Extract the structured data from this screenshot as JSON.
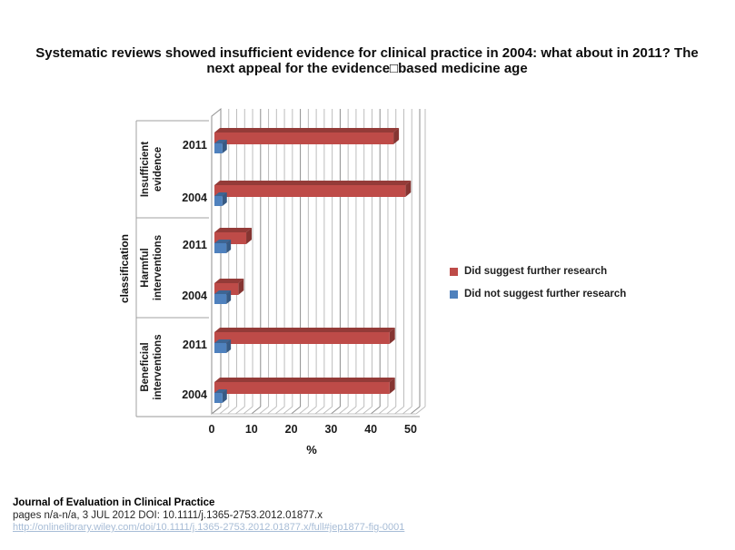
{
  "title": "Systematic reviews showed insufficient evidence for clinical practice in 2004: what about in 2011? The next appeal for the evidence□based medicine age",
  "chart_data": {
    "type": "bar",
    "orientation": "horizontal",
    "style": "3d",
    "xlabel": "%",
    "ylabel": "classification",
    "xlim": [
      0,
      52
    ],
    "xticks": [
      0,
      10,
      20,
      30,
      40,
      50
    ],
    "minor_grid_step": 2,
    "grid": true,
    "legend_position": "right-middle",
    "groups": [
      "Insufficient evidence",
      "Harmful interventions",
      "Beneficial interventions"
    ],
    "categories": [
      {
        "group": "Insufficient evidence",
        "year": "2011"
      },
      {
        "group": "Insufficient evidence",
        "year": "2004"
      },
      {
        "group": "Harmful interventions",
        "year": "2011"
      },
      {
        "group": "Harmful interventions",
        "year": "2004"
      },
      {
        "group": "Beneficial interventions",
        "year": "2011"
      },
      {
        "group": "Beneficial interventions",
        "year": "2004"
      }
    ],
    "series": [
      {
        "name": "Did suggest further research",
        "color": "#be4b48",
        "values": [
          45,
          48,
          8,
          6,
          44,
          44
        ]
      },
      {
        "name": "Did not suggest further research",
        "color": "#4f81bd",
        "values": [
          2,
          2,
          3,
          3,
          3,
          2
        ]
      }
    ]
  },
  "footer": {
    "journal": "Journal of Evaluation in Clinical Practice",
    "citation": "pages n/a-n/a, 3 JUL 2012 DOI: 10.1111/j.1365-2753.2012.01877.x",
    "link": "http://onlinelibrary.wiley.com/doi/10.1111/j.1365-2753.2012.01877.x/full#jep1877-fig-0001"
  }
}
